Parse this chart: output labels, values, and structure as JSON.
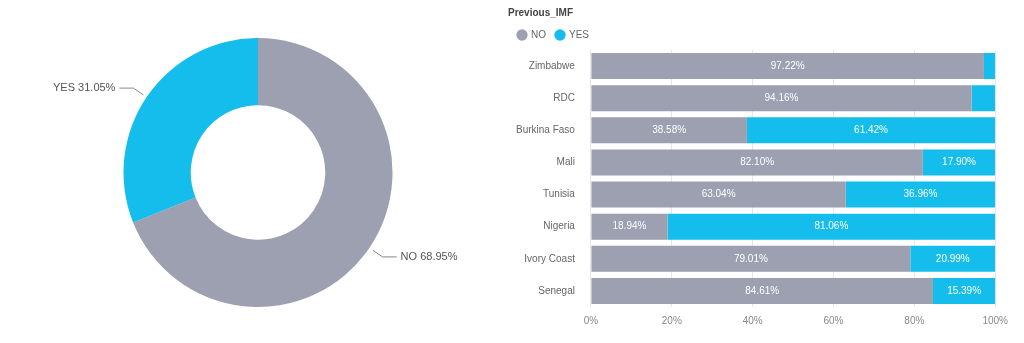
{
  "chart_data": [
    {
      "type": "donut",
      "categories": [
        "NO",
        "YES"
      ],
      "values": [
        68.95,
        31.05
      ],
      "colors": [
        "#9ca0b0",
        "#14bdeb"
      ],
      "value_labels": [
        "68.95%",
        "31.05%"
      ]
    },
    {
      "type": "bar",
      "orientation": "horizontal",
      "stacked": true,
      "legend_title": "Previous_IMF",
      "legend": "top left",
      "grid": "x",
      "categories": [
        "Zimbabwe",
        "RDC",
        "Burkina Faso",
        "Mali",
        "Tunisia",
        "Nigeria",
        "Ivory Coast",
        "Senegal"
      ],
      "xlim": [
        0,
        100
      ],
      "xticks": [
        {
          "value": 0,
          "label": "0%"
        },
        {
          "value": 20,
          "label": "20%"
        },
        {
          "value": 40,
          "label": "40%"
        },
        {
          "value": 60,
          "label": "60%"
        },
        {
          "value": 80,
          "label": "80%"
        },
        {
          "value": 100,
          "label": "100%"
        }
      ],
      "series": [
        {
          "name": "NO",
          "color": "#9ca0b0",
          "values": [
            97.22,
            94.16,
            38.58,
            82.1,
            63.04,
            18.94,
            79.01,
            84.61
          ],
          "value_labels": [
            "97.22%",
            "94.16%",
            "38.58%",
            "82.10%",
            "63.04%",
            "18.94%",
            "79.01%",
            "84.61%"
          ]
        },
        {
          "name": "YES",
          "color": "#14bdeb",
          "values": [
            2.8,
            5.8,
            61.42,
            17.9,
            36.96,
            81.06,
            20.99,
            15.39
          ],
          "value_labels": [
            null,
            null,
            "61.42%",
            "17.90%",
            "36.96%",
            "81.06%",
            "20.99%",
            "15.39%"
          ]
        }
      ]
    }
  ]
}
